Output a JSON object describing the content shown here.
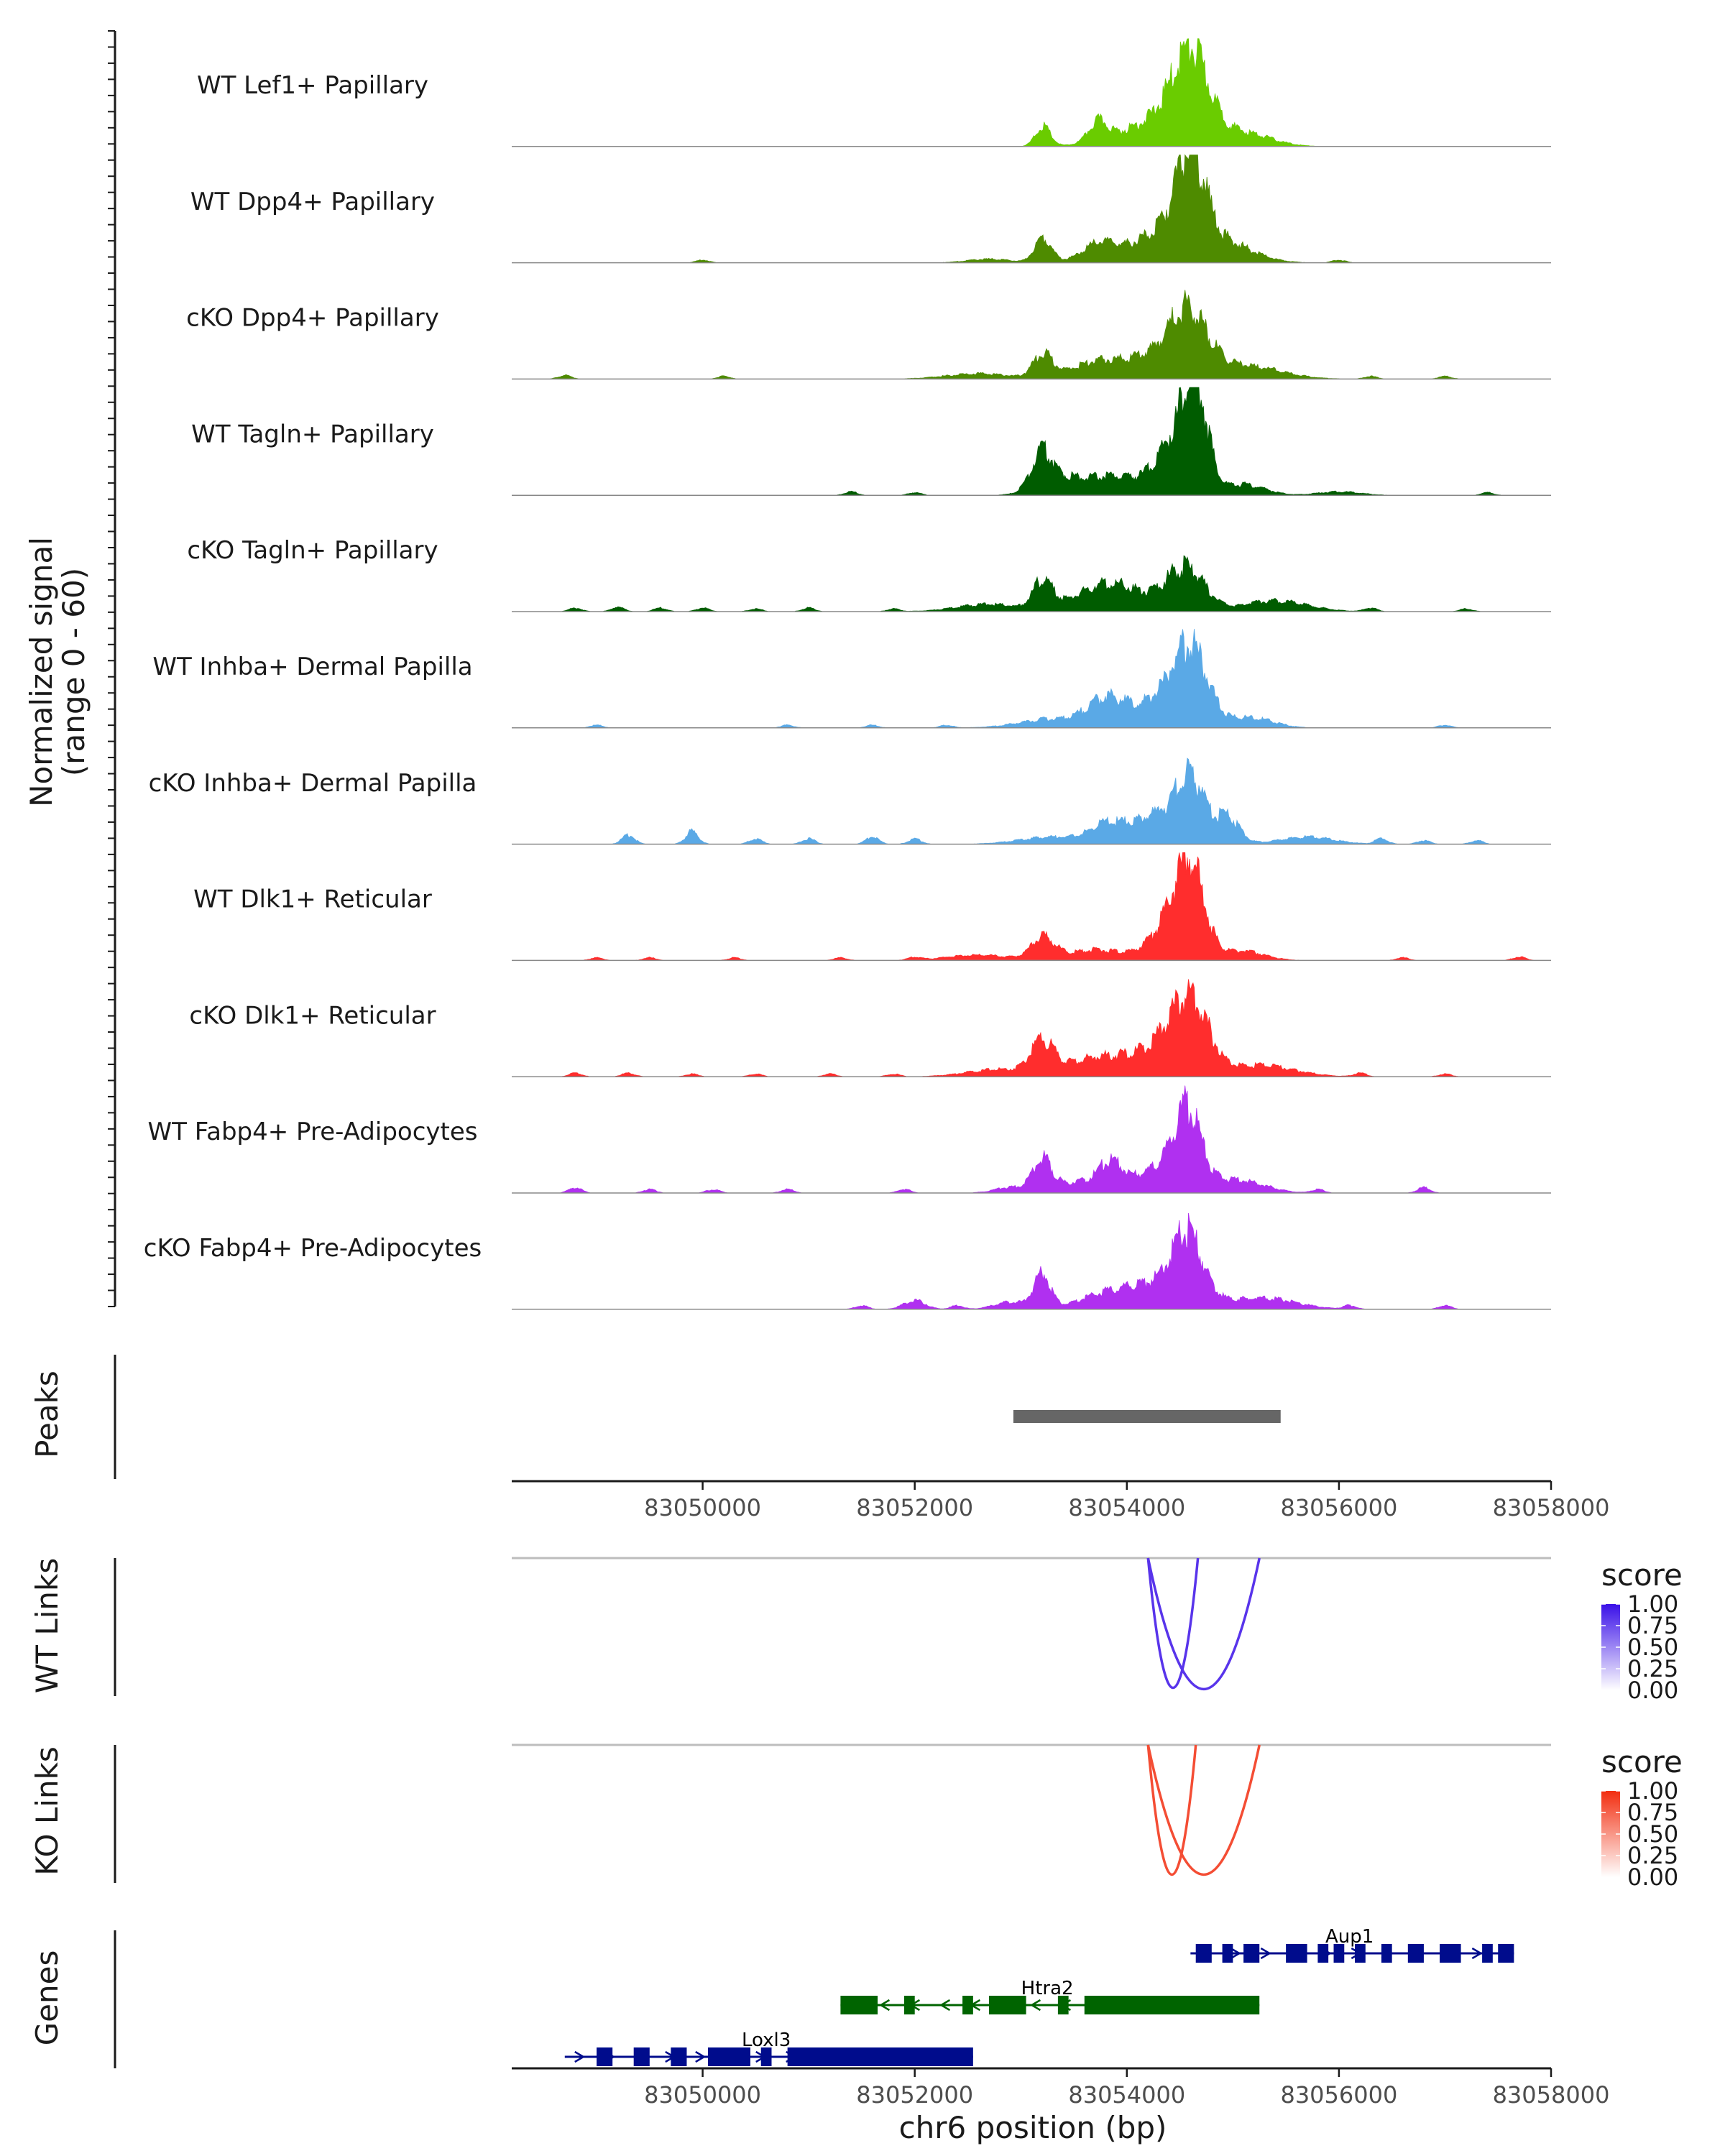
{
  "chart_data": {
    "type": "area",
    "title": "",
    "region": {
      "chrom": "chr6",
      "start": 83048200,
      "end": 83058000
    },
    "coverage": {
      "ylabel_line1": "Normalized signal",
      "ylabel_line2": "(range 0 - 60)",
      "ylim": [
        0,
        60
      ],
      "peak_center": 83054600,
      "tracks": [
        {
          "name": "WT Lef1+ Papillary",
          "color": "#6ACC00",
          "peaks": [
            [
              83054600,
              38,
              160
            ],
            [
              83054450,
              18,
              400
            ],
            [
              83053730,
              11,
              90
            ],
            [
              83053210,
              11,
              70
            ],
            [
              83055200,
              4,
              220
            ]
          ],
          "noise": []
        },
        {
          "name": "WT Dpp4+ Papillary",
          "color": "#4E8B00",
          "peaks": [
            [
              83054600,
              45,
              130
            ],
            [
              83054450,
              20,
              350
            ],
            [
              83053730,
              9,
              160
            ],
            [
              83053210,
              14,
              80
            ],
            [
              83055000,
              6,
              250
            ],
            [
              83052700,
              2,
              200
            ]
          ],
          "noise": [
            [
              83050000,
              1.5
            ],
            [
              83056000,
              1.5
            ]
          ]
        },
        {
          "name": "cKO Dpp4+ Papillary",
          "color": "#4E8B00",
          "peaks": [
            [
              83054580,
              26,
              170
            ],
            [
              83054400,
              15,
              350
            ],
            [
              83053210,
              13,
              90
            ],
            [
              83053700,
              8,
              250
            ],
            [
              83055200,
              6,
              300
            ],
            [
              83052600,
              3,
              300
            ]
          ],
          "noise": [
            [
              83048700,
              2
            ],
            [
              83050200,
              1.5
            ],
            [
              83056300,
              1.5
            ],
            [
              83057000,
              1.5
            ]
          ]
        },
        {
          "name": "WT Tagln+ Papillary",
          "color": "#005C00",
          "peaks": [
            [
              83054650,
              52,
              110
            ],
            [
              83054450,
              30,
              180
            ],
            [
              83053200,
              20,
              100
            ],
            [
              83053500,
              10,
              260
            ],
            [
              83053950,
              8,
              180
            ],
            [
              83055100,
              6,
              200
            ],
            [
              83056000,
              2,
              200
            ]
          ],
          "noise": [
            [
              83051400,
              2
            ],
            [
              83052000,
              1.5
            ],
            [
              83057400,
              1.5
            ]
          ]
        },
        {
          "name": "cKO Tagln+ Papillary",
          "color": "#005C00",
          "peaks": [
            [
              83054550,
              24,
              180
            ],
            [
              83053210,
              16,
              90
            ],
            [
              83053700,
              10,
              250
            ],
            [
              83054000,
              9,
              250
            ],
            [
              83055400,
              6,
              300
            ],
            [
              83052700,
              4,
              300
            ]
          ],
          "noise": [
            [
              83048800,
              2
            ],
            [
              83049200,
              2.5
            ],
            [
              83049600,
              2
            ],
            [
              83050000,
              2
            ],
            [
              83050500,
              1.5
            ],
            [
              83051000,
              2
            ],
            [
              83051800,
              1.5
            ],
            [
              83056300,
              2
            ],
            [
              83057200,
              1.5
            ]
          ]
        },
        {
          "name": "WT Inhba+ Dermal Papilla",
          "color": "#5AA9E6",
          "peaks": [
            [
              83054600,
              32,
              150
            ],
            [
              83054400,
              18,
              300
            ],
            [
              83053800,
              14,
              170
            ],
            [
              83053300,
              5,
              300
            ],
            [
              83055200,
              5,
              200
            ]
          ],
          "noise": [
            [
              83049000,
              1.5
            ],
            [
              83050800,
              1.5
            ],
            [
              83051600,
              1.5
            ],
            [
              83052300,
              1.5
            ],
            [
              83057000,
              1.5
            ]
          ]
        },
        {
          "name": "cKO Inhba+ Dermal Papilla",
          "color": "#5AA9E6",
          "peaks": [
            [
              83054600,
              28,
              120
            ],
            [
              83054350,
              18,
              300
            ],
            [
              83054950,
              13,
              110
            ],
            [
              83053800,
              8,
              150
            ],
            [
              83053300,
              4,
              300
            ],
            [
              83055700,
              4,
              250
            ]
          ],
          "noise": [
            [
              83049300,
              5
            ],
            [
              83049900,
              7
            ],
            [
              83050500,
              3
            ],
            [
              83051000,
              3
            ],
            [
              83051600,
              4
            ],
            [
              83052000,
              3
            ],
            [
              83056400,
              3
            ],
            [
              83056800,
              2
            ],
            [
              83057300,
              2
            ]
          ]
        },
        {
          "name": "WT Dlk1+ Reticular",
          "color": "#FF2D2D",
          "peaks": [
            [
              83054600,
              40,
              130
            ],
            [
              83054450,
              22,
              200
            ],
            [
              83053210,
              12,
              110
            ],
            [
              83053700,
              6,
              260
            ],
            [
              83055100,
              5,
              200
            ],
            [
              83052600,
              3,
              300
            ]
          ],
          "noise": [
            [
              83049000,
              1.5
            ],
            [
              83049500,
              1.5
            ],
            [
              83050300,
              1.5
            ],
            [
              83051300,
              1.5
            ],
            [
              83052000,
              1.5
            ],
            [
              83056600,
              1.5
            ],
            [
              83057700,
              2
            ]
          ]
        },
        {
          "name": "cKO Dlk1+ Reticular",
          "color": "#FF2D2D",
          "peaks": [
            [
              83054600,
              32,
              160
            ],
            [
              83054400,
              18,
              300
            ],
            [
              83053200,
              17,
              110
            ],
            [
              83053700,
              10,
              280
            ],
            [
              83055300,
              6,
              300
            ],
            [
              83052800,
              4,
              300
            ]
          ],
          "noise": [
            [
              83048800,
              2
            ],
            [
              83049300,
              2
            ],
            [
              83049900,
              1.5
            ],
            [
              83050500,
              1.5
            ],
            [
              83051200,
              1.5
            ],
            [
              83051800,
              1.5
            ],
            [
              83056200,
              2
            ],
            [
              83057000,
              1.5
            ]
          ]
        },
        {
          "name": "WT Fabp4+ Pre-Adipocytes",
          "color": "#B030F0",
          "peaks": [
            [
              83054570,
              35,
              120
            ],
            [
              83054400,
              15,
              300
            ],
            [
              83053200,
              17,
              90
            ],
            [
              83053850,
              13,
              110
            ],
            [
              83053550,
              6,
              230
            ],
            [
              83055100,
              6,
              230
            ],
            [
              83052900,
              3,
              150
            ]
          ],
          "noise": [
            [
              83048800,
              3
            ],
            [
              83049500,
              2
            ],
            [
              83050100,
              2
            ],
            [
              83050800,
              2
            ],
            [
              83051900,
              2
            ],
            [
              83055800,
              2
            ],
            [
              83056800,
              3
            ]
          ]
        },
        {
          "name": "cKO Fabp4+ Pre-Adipocytes",
          "color": "#B030F0",
          "peaks": [
            [
              83054570,
              30,
              130
            ],
            [
              83054400,
              16,
              300
            ],
            [
              83053200,
              19,
              80
            ],
            [
              83053800,
              8,
              250
            ],
            [
              83055300,
              6,
              300
            ],
            [
              83052000,
              5,
              100
            ],
            [
              83052900,
              4,
              150
            ]
          ],
          "noise": [
            [
              83051500,
              2
            ],
            [
              83052400,
              2
            ],
            [
              83056100,
              2
            ],
            [
              83057000,
              2
            ]
          ]
        }
      ]
    },
    "peaks_track": {
      "ylabel": "Peaks",
      "color": "#666666",
      "intervals": [
        [
          83052930,
          83055450
        ]
      ]
    },
    "axis": {
      "ticks": [
        83050000,
        83052000,
        83054000,
        83056000,
        83058000
      ],
      "tick_labels": [
        "83050000",
        "83052000",
        "83054000",
        "83056000",
        "83058000"
      ],
      "xlabel": "chr6 position (bp)"
    },
    "links": [
      {
        "ylabel": "WT Links",
        "legend_title": "score",
        "legend_labels": [
          "1.00",
          "0.75",
          "0.50",
          "0.25",
          "0.00"
        ],
        "color_high": "#3A10E8",
        "color_low": "#FFFFFF",
        "arcs": [
          {
            "start": 83054200,
            "end": 83054670,
            "score": 0.85,
            "depth": 0.94
          },
          {
            "start": 83054200,
            "end": 83055250,
            "score": 0.85,
            "depth": 0.95
          }
        ]
      },
      {
        "ylabel": "KO Links",
        "legend_title": "score",
        "legend_labels": [
          "1.00",
          "0.75",
          "0.50",
          "0.25",
          "0.00"
        ],
        "color_high": "#F22E10",
        "color_low": "#FFFFFF",
        "arcs": [
          {
            "start": 83054200,
            "end": 83054650,
            "score": 0.85,
            "depth": 0.94
          },
          {
            "start": 83054200,
            "end": 83055250,
            "score": 0.85,
            "depth": 0.94
          }
        ]
      }
    ],
    "genes": {
      "ylabel": "Genes",
      "items": [
        {
          "name": "Aup1",
          "row": 0,
          "strand": "+",
          "color": "#000C8C",
          "start": 83054600,
          "end": 83057650,
          "exons": [
            [
              83054650,
              83054800
            ],
            [
              83054900,
              83055000
            ],
            [
              83055100,
              83055250
            ],
            [
              83055500,
              83055700
            ],
            [
              83055800,
              83055900
            ],
            [
              83055950,
              83056050
            ],
            [
              83056150,
              83056250
            ],
            [
              83056400,
              83056500
            ],
            [
              83056650,
              83056800
            ],
            [
              83056950,
              83057150
            ],
            [
              83057350,
              83057450
            ],
            [
              83057500,
              83057650
            ]
          ],
          "label_pos": 83056100
        },
        {
          "name": "Htra2",
          "row": 1,
          "strand": "-",
          "color": "#006400",
          "start": 83051300,
          "end": 83055250,
          "exons": [
            [
              83051300,
              83051650
            ],
            [
              83051900,
              83052000
            ],
            [
              83052450,
              83052550
            ],
            [
              83052700,
              83053050
            ],
            [
              83053350,
              83053450
            ],
            [
              83053600,
              83055250
            ]
          ],
          "label_pos": 83053250
        },
        {
          "name": "Loxl3",
          "row": 2,
          "strand": "+",
          "color": "#000C8C",
          "start": 83048700,
          "end": 83052550,
          "exons": [
            [
              83049000,
              83049150
            ],
            [
              83049350,
              83049500
            ],
            [
              83049700,
              83049850
            ],
            [
              83050050,
              83050450
            ],
            [
              83050550,
              83050650
            ],
            [
              83050800,
              83052550
            ]
          ],
          "label_pos": 83050600
        }
      ]
    }
  }
}
